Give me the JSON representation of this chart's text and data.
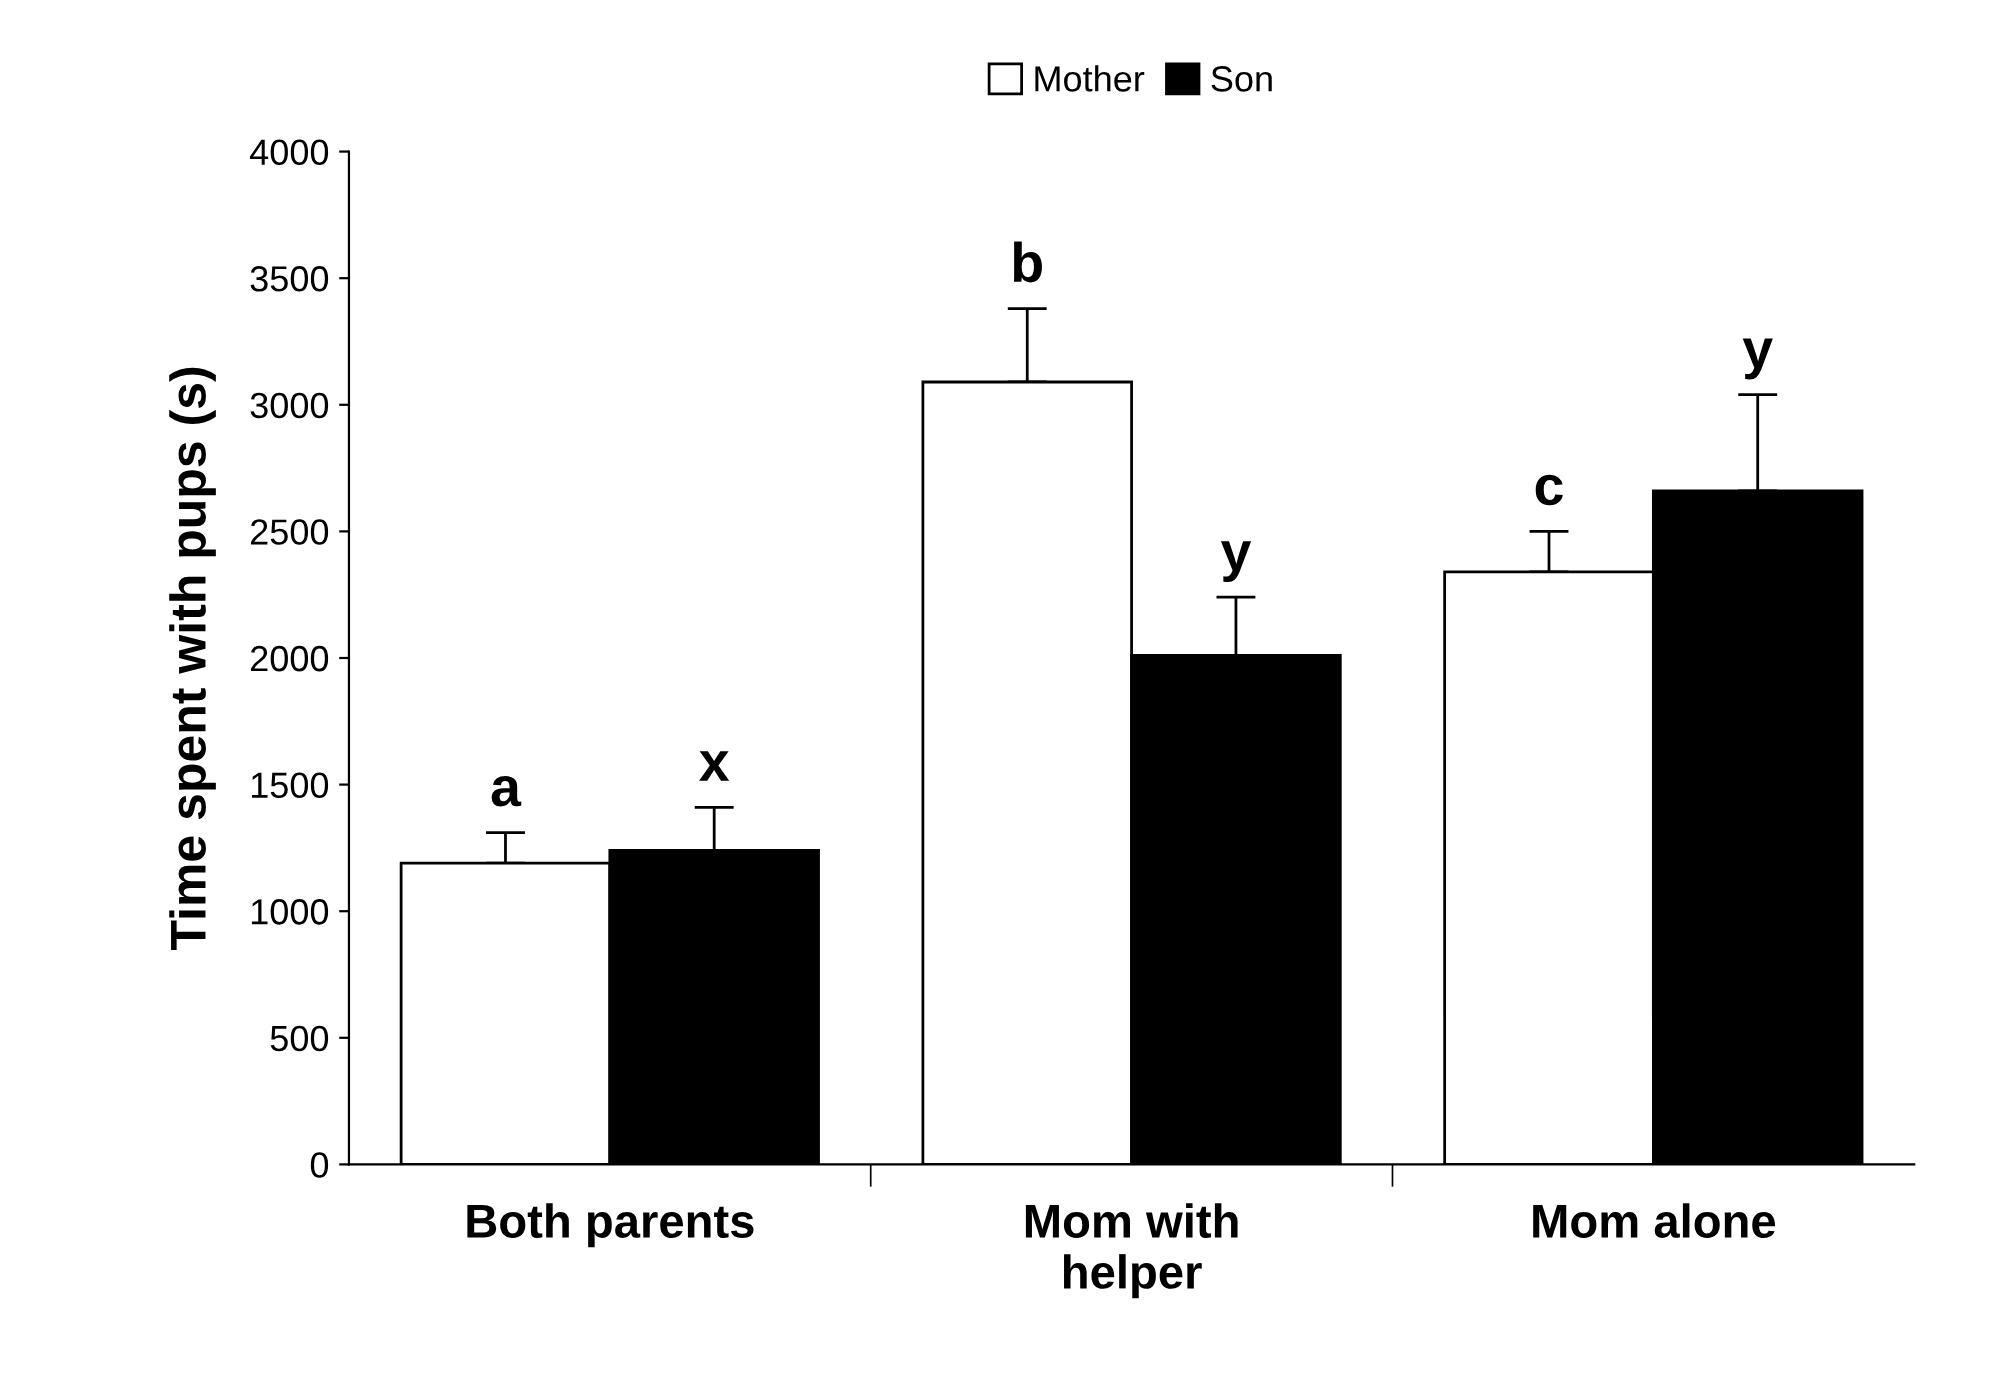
{
  "chart_data": {
    "type": "bar",
    "ylabel": "Time spent with pups (s)",
    "categories": [
      "Both parents",
      "Mom with\nhelper",
      "Mom alone"
    ],
    "series": [
      {
        "name": "Mother",
        "color": "#ffffff",
        "values": [
          1190,
          3090,
          2340
        ],
        "errors": [
          [
            1190,
            1310
          ],
          [
            3090,
            3380
          ],
          [
            2340,
            2500
          ]
        ]
      },
      {
        "name": "Son",
        "color": "#000000",
        "values": [
          1240,
          2010,
          2660
        ],
        "errors": [
          [
            1240,
            1410
          ],
          [
            2010,
            2240
          ],
          [
            2660,
            3040
          ]
        ]
      }
    ],
    "annotations": [
      "a",
      "b",
      "c",
      "x",
      "y",
      "y"
    ],
    "ylim": [
      0,
      4000
    ],
    "yticks": [
      0,
      500,
      1000,
      1500,
      2000,
      2500,
      3000,
      3500,
      4000
    ],
    "grid": false,
    "legend": "top"
  }
}
